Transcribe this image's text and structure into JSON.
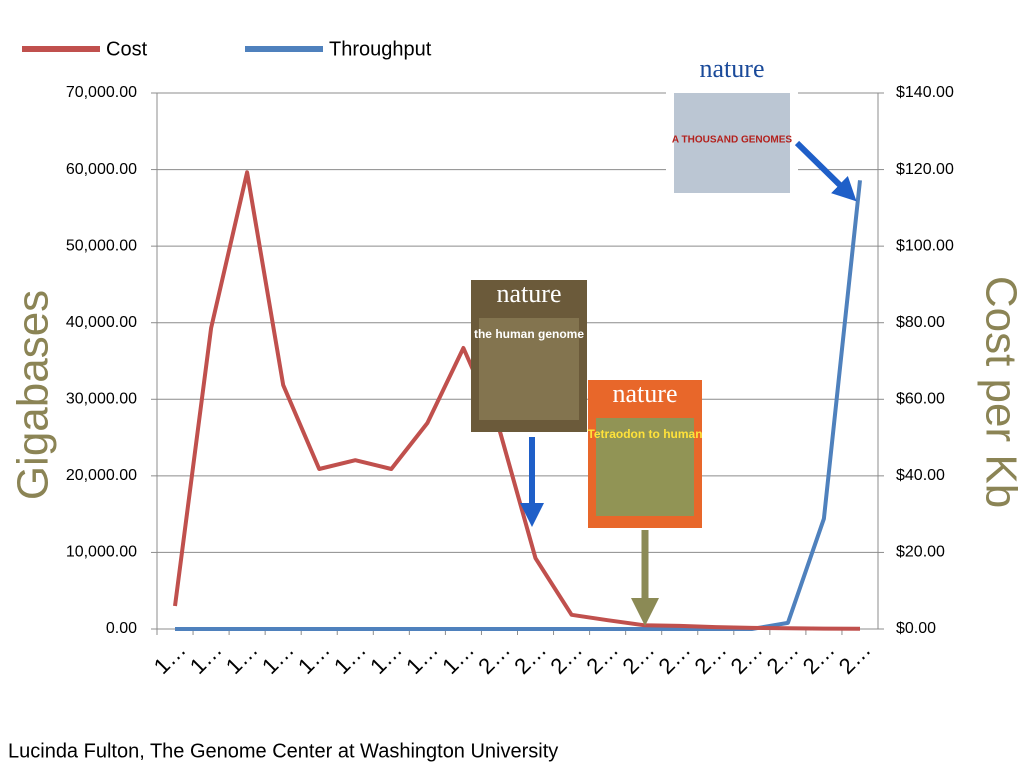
{
  "chart_data": {
    "type": "line",
    "categories": [
      "1…",
      "1…",
      "1…",
      "1…",
      "1…",
      "1…",
      "1…",
      "1…",
      "1…",
      "2…",
      "2…",
      "2…",
      "2…",
      "2…",
      "2…",
      "2…",
      "2…",
      "2…",
      "2…",
      "2…"
    ],
    "series": [
      {
        "name": "Cost",
        "color": "#c0504d",
        "axis": "y2",
        "values": [
          6.0,
          78.6,
          119.3,
          63.7,
          41.8,
          44.1,
          41.8,
          53.8,
          73.4,
          52.0,
          18.5,
          3.7,
          2.3,
          1.0,
          0.8,
          0.5,
          0.3,
          0.2,
          0.1,
          0.05
        ]
      },
      {
        "name": "Throughput",
        "color": "#4f81bd",
        "values": [
          0,
          0,
          0,
          0,
          0,
          0,
          0,
          0,
          0,
          0,
          0,
          0,
          0,
          0,
          0,
          0,
          0,
          800,
          14400,
          58600
        ]
      }
    ],
    "ylabel": "Gigabases",
    "y2label": "Cost per Kb",
    "ylim": [
      0,
      70000
    ],
    "yticks": [
      {
        "value": 0,
        "label": "0.00"
      },
      {
        "value": 10000,
        "label": "10,000.00"
      },
      {
        "value": 20000,
        "label": "20,000.00"
      },
      {
        "value": 30000,
        "label": "30,000.00"
      },
      {
        "value": 40000,
        "label": "40,000.00"
      },
      {
        "value": 50000,
        "label": "50,000.00"
      },
      {
        "value": 60000,
        "label": "60,000.00"
      },
      {
        "value": 70000,
        "label": "70,000.00"
      }
    ],
    "y2lim": [
      0,
      140
    ],
    "y2ticks": [
      {
        "value": 0,
        "label": "$0.00"
      },
      {
        "value": 20,
        "label": "$20.00"
      },
      {
        "value": 40,
        "label": "$40.00"
      },
      {
        "value": 60,
        "label": "$60.00"
      },
      {
        "value": 80,
        "label": "$80.00"
      },
      {
        "value": 100,
        "label": "$100.00"
      },
      {
        "value": 120,
        "label": "$120.00"
      },
      {
        "value": 140,
        "label": "$140.00"
      }
    ],
    "grid": true,
    "legend": "top-left",
    "annotations": [
      {
        "title": "nature",
        "subtitle": "A THOUSAND GENOMES"
      },
      {
        "title": "nature",
        "subtitle": "the human genome"
      },
      {
        "title": "nature",
        "subtitle": "Tetraodon to human"
      }
    ],
    "credit": "Lucinda Fulton, The Genome Center at Washington University"
  }
}
